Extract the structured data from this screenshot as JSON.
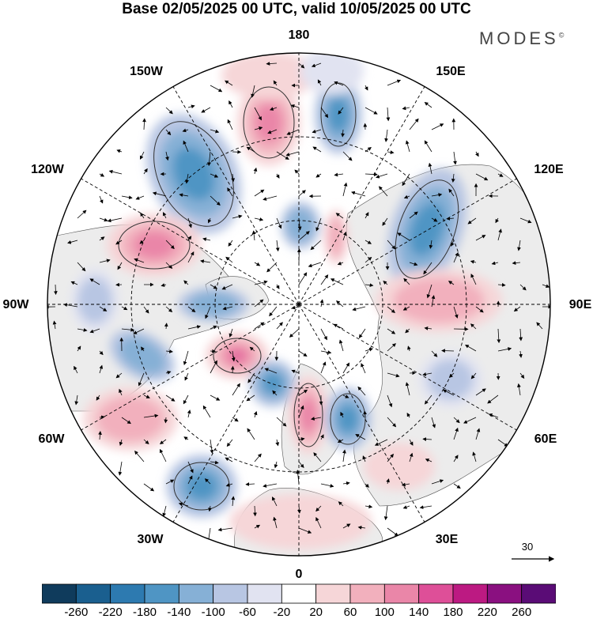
{
  "title": "Base 02/05/2025 00 UTC, valid 10/05/2025 00 UTC",
  "brand": "MODES",
  "brand_mark": "©",
  "longitude_labels": [
    {
      "id": "lon-180",
      "text": "180"
    },
    {
      "id": "lon-150e",
      "text": "150E"
    },
    {
      "id": "lon-120e",
      "text": "120E"
    },
    {
      "id": "lon-90e",
      "text": "90E"
    },
    {
      "id": "lon-60e",
      "text": "60E"
    },
    {
      "id": "lon-30e",
      "text": "30E"
    },
    {
      "id": "lon-0",
      "text": "0"
    },
    {
      "id": "lon-30w",
      "text": "30W"
    },
    {
      "id": "lon-60w",
      "text": "60W"
    },
    {
      "id": "lon-90w",
      "text": "90W"
    },
    {
      "id": "lon-120w",
      "text": "120W"
    },
    {
      "id": "lon-150w",
      "text": "150W"
    }
  ],
  "reference_vector": {
    "value": "30"
  },
  "colorbar": {
    "levels": [
      "-260",
      "-220",
      "-180",
      "-140",
      "-100",
      "-60",
      "-20",
      "20",
      "60",
      "100",
      "140",
      "180",
      "220",
      "260"
    ],
    "colors": [
      "#0f3b5c",
      "#1a5f8f",
      "#2d7ab0",
      "#4f95c4",
      "#86b0d6",
      "#b8c6e3",
      "#e1e3f1",
      "#ffffff",
      "#f6d6d8",
      "#f2b0bd",
      "#ea86a8",
      "#de4f98",
      "#bc1a82",
      "#8a1080",
      "#5a0c76"
    ]
  },
  "colors": {
    "land": "#ececec",
    "ocean": "#ffffff",
    "contour_line": "#333333",
    "grid_line": "#000000"
  },
  "icons": [
    "wind-vector-arrow-icon",
    "reference-vector-arrow-icon"
  ]
}
